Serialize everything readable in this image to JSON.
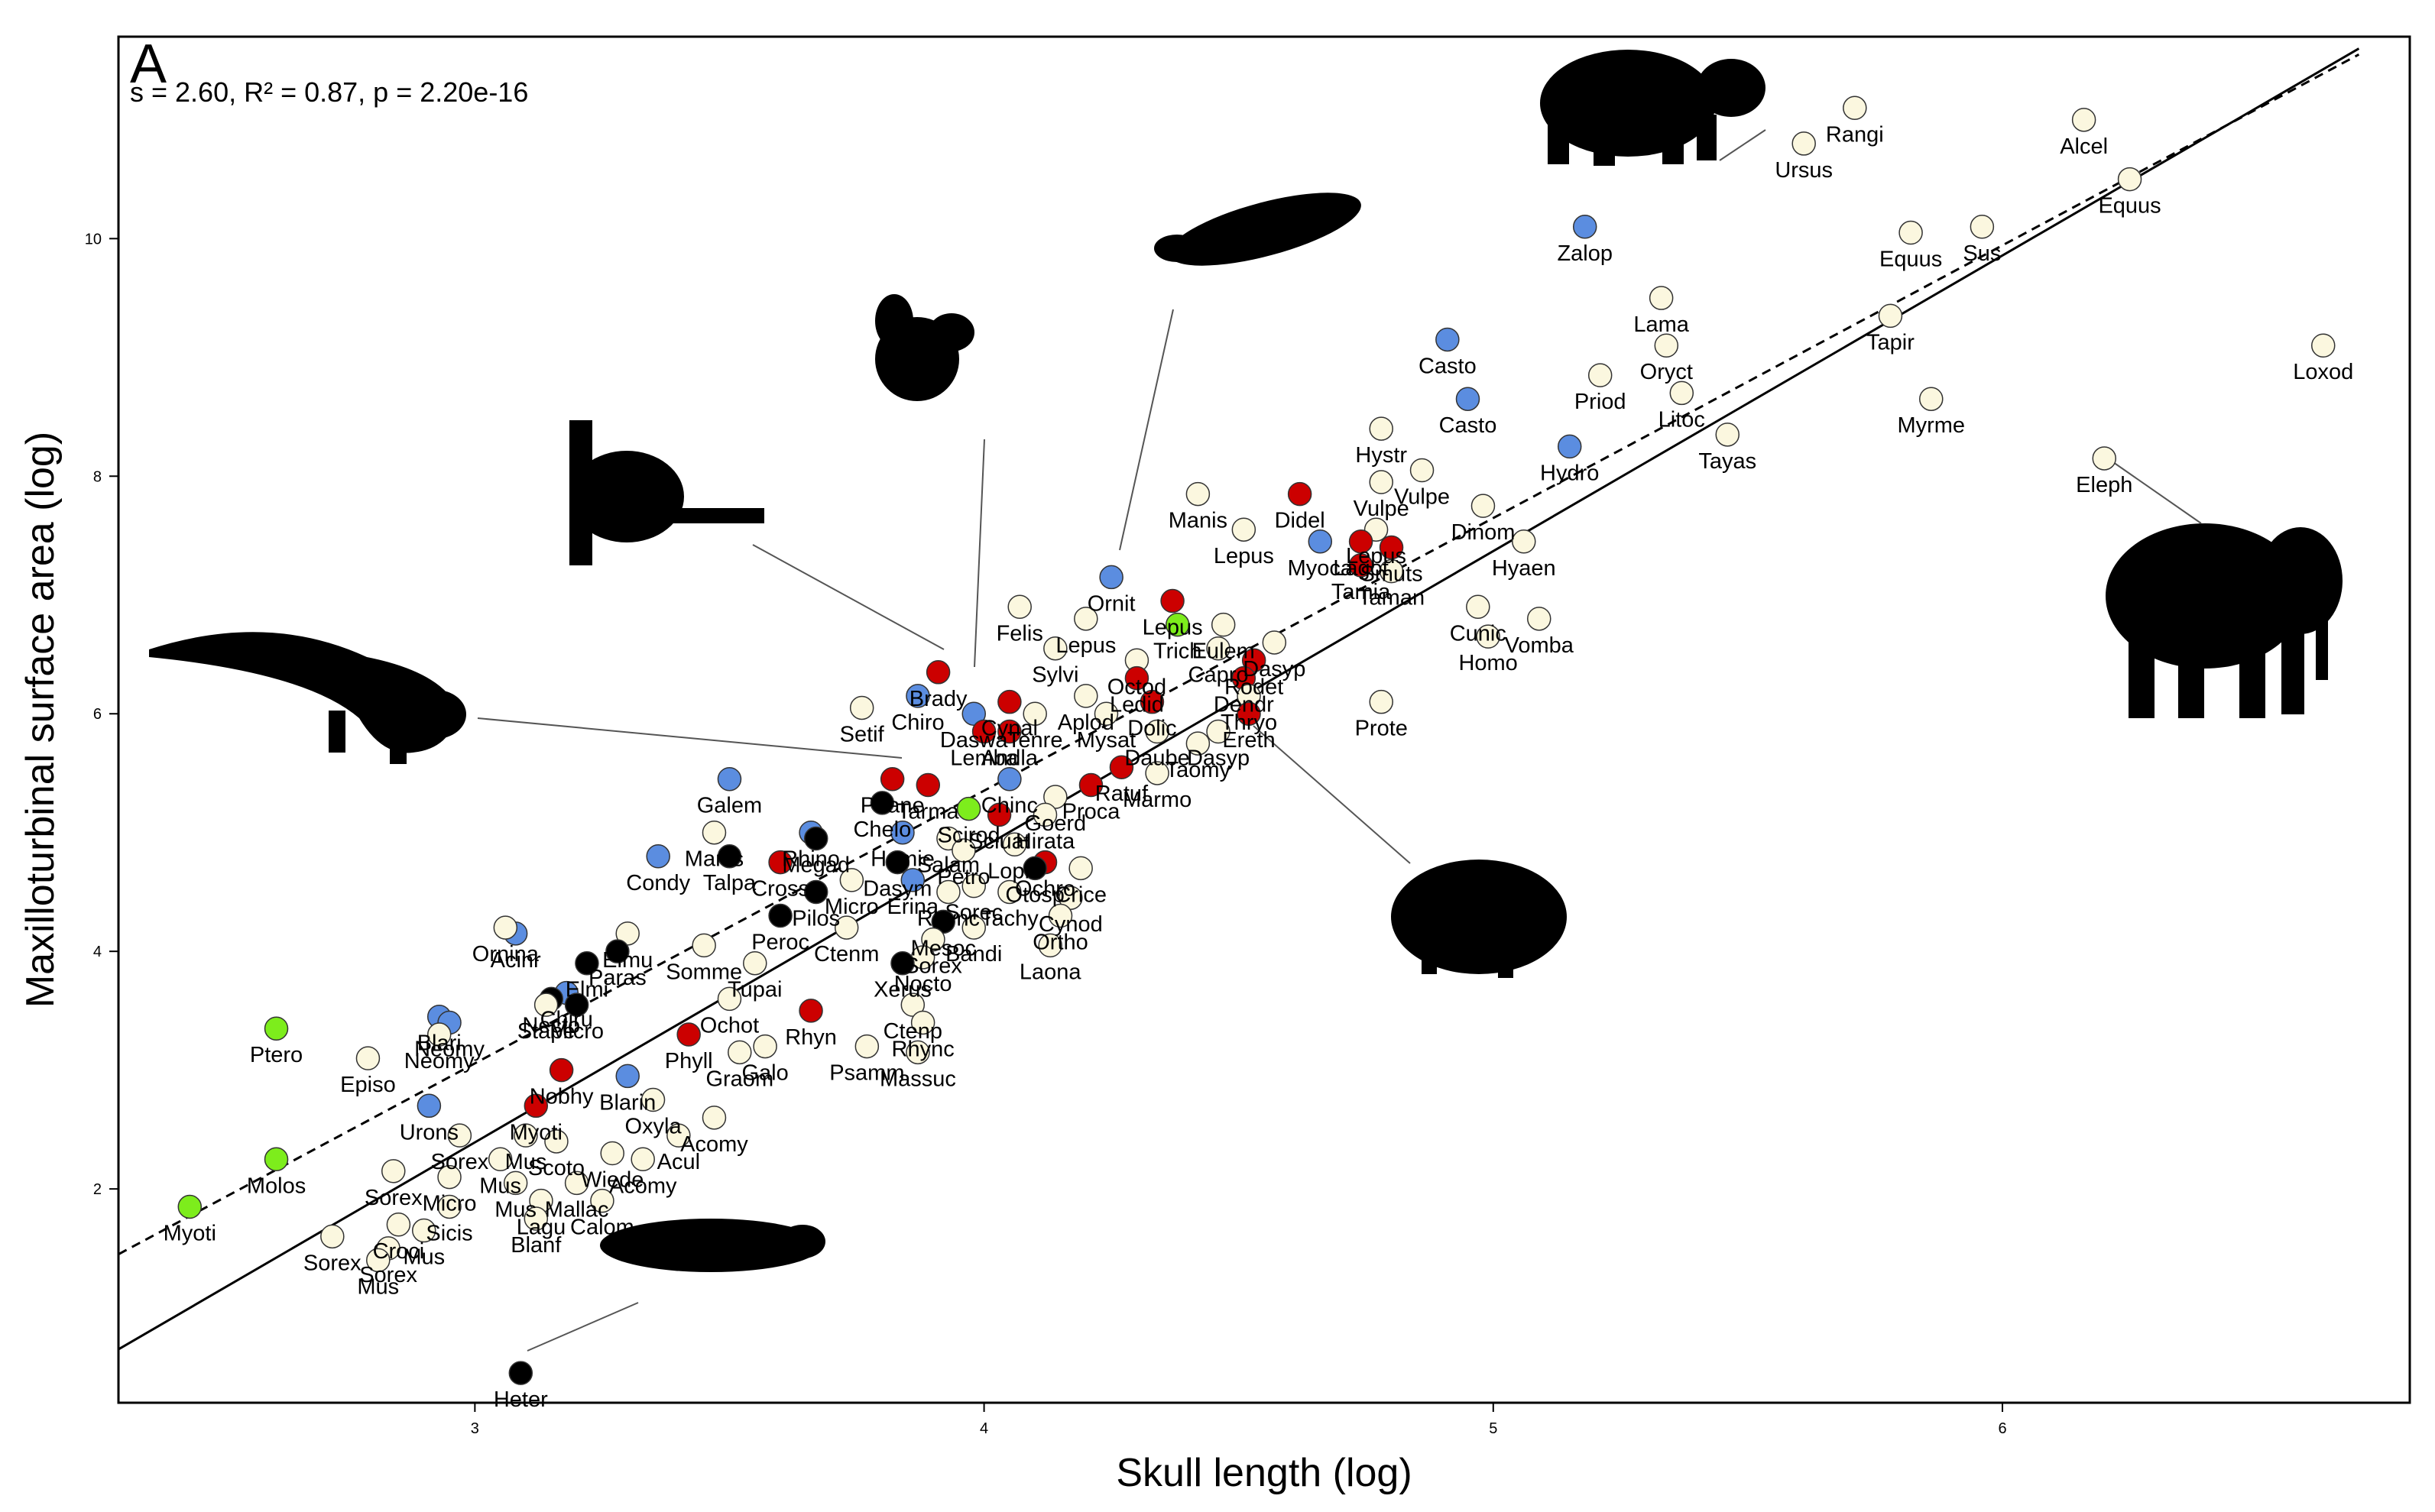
{
  "chart_data": {
    "type": "scatter",
    "panel_label": "A",
    "stats": "s = 2.60, R² = 0.87, p = 2.20e-16",
    "xlabel": "Skull length (log)",
    "ylabel": "Maxilloturbinal surface area (log)",
    "xlim": [
      2.3,
      6.8
    ],
    "ylim": [
      0.2,
      11.7
    ],
    "xticks": [
      3,
      4,
      5,
      6
    ],
    "yticks": [
      2,
      4,
      6,
      8,
      10
    ],
    "group_colors": {
      "cream": "#fbf7df",
      "blue": "#5b8de0",
      "red": "#cc0000",
      "black": "#000000",
      "green": "#7ded1c"
    },
    "fit_lines": [
      {
        "name": "solid",
        "x": [
          2.3,
          6.7
        ],
        "y": [
          0.65,
          11.6
        ]
      },
      {
        "name": "dashed",
        "x": [
          2.3,
          6.7
        ],
        "y": [
          1.45,
          11.55
        ]
      }
    ],
    "labeled_points": [
      {
        "x": 5.71,
        "y": 11.1,
        "group": "cream",
        "label": "Rangi"
      },
      {
        "x": 5.61,
        "y": 10.8,
        "group": "cream",
        "label": "Ursus"
      },
      {
        "x": 6.16,
        "y": 11.0,
        "group": "cream",
        "label": "Alcel"
      },
      {
        "x": 6.25,
        "y": 10.5,
        "group": "cream",
        "label": "Equus"
      },
      {
        "x": 5.18,
        "y": 10.1,
        "group": "blue",
        "label": "Zalop"
      },
      {
        "x": 5.82,
        "y": 10.05,
        "group": "cream",
        "label": "Equus"
      },
      {
        "x": 5.96,
        "y": 10.1,
        "group": "cream",
        "label": "Sus"
      },
      {
        "x": 5.33,
        "y": 9.5,
        "group": "cream",
        "label": "Lama"
      },
      {
        "x": 5.78,
        "y": 9.35,
        "group": "cream",
        "label": "Tapir"
      },
      {
        "x": 4.91,
        "y": 9.15,
        "group": "blue",
        "label": "Casto"
      },
      {
        "x": 5.34,
        "y": 9.1,
        "group": "cream",
        "label": "Oryct"
      },
      {
        "x": 6.63,
        "y": 9.1,
        "group": "cream",
        "label": "Loxod"
      },
      {
        "x": 5.21,
        "y": 8.85,
        "group": "cream",
        "label": "Priod"
      },
      {
        "x": 4.95,
        "y": 8.65,
        "group": "blue",
        "label": "Casto"
      },
      {
        "x": 5.37,
        "y": 8.7,
        "group": "cream",
        "label": "Litoc"
      },
      {
        "x": 5.86,
        "y": 8.65,
        "group": "cream",
        "label": "Myrme"
      },
      {
        "x": 5.46,
        "y": 8.35,
        "group": "cream",
        "label": "Tayas"
      },
      {
        "x": 5.15,
        "y": 8.25,
        "group": "blue",
        "label": "Hydro"
      },
      {
        "x": 6.2,
        "y": 8.15,
        "group": "cream",
        "label": "Eleph"
      },
      {
        "x": 4.78,
        "y": 8.4,
        "group": "cream",
        "label": "Hystr"
      },
      {
        "x": 4.86,
        "y": 8.05,
        "group": "cream",
        "label": "Vulpe"
      },
      {
        "x": 4.78,
        "y": 7.95,
        "group": "cream",
        "label": "Vulpe"
      },
      {
        "x": 4.62,
        "y": 7.85,
        "group": "red",
        "label": "Didel"
      },
      {
        "x": 4.42,
        "y": 7.85,
        "group": "cream",
        "label": "Manis"
      },
      {
        "x": 4.98,
        "y": 7.75,
        "group": "cream",
        "label": "Dinom"
      },
      {
        "x": 4.77,
        "y": 7.55,
        "group": "cream",
        "label": "Lepus"
      },
      {
        "x": 4.51,
        "y": 7.55,
        "group": "cream",
        "label": "Lepus"
      },
      {
        "x": 4.66,
        "y": 7.45,
        "group": "blue",
        "label": "Myoca"
      },
      {
        "x": 4.74,
        "y": 7.45,
        "group": "red",
        "label": "Lagot"
      },
      {
        "x": 4.8,
        "y": 7.4,
        "group": "red",
        "label": "Smuts"
      },
      {
        "x": 5.06,
        "y": 7.45,
        "group": "cream",
        "label": "Hyaen"
      },
      {
        "x": 4.74,
        "y": 7.25,
        "group": "red",
        "label": "Tamia"
      },
      {
        "x": 4.8,
        "y": 7.2,
        "group": "cream",
        "label": "Taman"
      },
      {
        "x": 4.25,
        "y": 7.15,
        "group": "blue",
        "label": "Ornit"
      },
      {
        "x": 4.37,
        "y": 6.95,
        "group": "red",
        "label": "Lepus"
      },
      {
        "x": 4.38,
        "y": 6.75,
        "group": "green",
        "label": "Trich"
      },
      {
        "x": 4.47,
        "y": 6.75,
        "group": "cream",
        "label": "Eulem"
      },
      {
        "x": 4.97,
        "y": 6.9,
        "group": "cream",
        "label": "Cunic"
      },
      {
        "x": 5.09,
        "y": 6.8,
        "group": "cream",
        "label": "Vomba"
      },
      {
        "x": 4.99,
        "y": 6.65,
        "group": "cream",
        "label": "Homo"
      },
      {
        "x": 4.07,
        "y": 6.9,
        "group": "cream",
        "label": "Felis"
      },
      {
        "x": 4.2,
        "y": 6.8,
        "group": "cream",
        "label": "Lepus"
      },
      {
        "x": 4.57,
        "y": 6.6,
        "group": "cream",
        "label": "Dasyp"
      },
      {
        "x": 4.46,
        "y": 6.55,
        "group": "cream",
        "label": "Capro"
      },
      {
        "x": 4.14,
        "y": 6.55,
        "group": "cream",
        "label": "Sylvi"
      },
      {
        "x": 4.3,
        "y": 6.45,
        "group": "cream",
        "label": "Octod"
      },
      {
        "x": 4.53,
        "y": 6.45,
        "group": "red",
        "label": "Rodet"
      },
      {
        "x": 4.51,
        "y": 6.3,
        "group": "red",
        "label": "Dendr"
      },
      {
        "x": 4.52,
        "y": 6.15,
        "group": "cream",
        "label": "Thryo"
      },
      {
        "x": 4.3,
        "y": 6.3,
        "group": "red",
        "label": "Ledid"
      },
      {
        "x": 4.2,
        "y": 6.15,
        "group": "cream",
        "label": "Aplod"
      },
      {
        "x": 4.33,
        "y": 6.1,
        "group": "red",
        "label": "Dolic"
      },
      {
        "x": 4.24,
        "y": 6.0,
        "group": "cream",
        "label": "Mysat"
      },
      {
        "x": 4.52,
        "y": 6.0,
        "group": "red",
        "label": "Ereth"
      },
      {
        "x": 3.91,
        "y": 6.35,
        "group": "red",
        "label": "Brady"
      },
      {
        "x": 3.87,
        "y": 6.15,
        "group": "blue",
        "label": "Chiro"
      },
      {
        "x": 3.76,
        "y": 6.05,
        "group": "cream",
        "label": "Setif"
      },
      {
        "x": 4.78,
        "y": 6.1,
        "group": "cream",
        "label": "Prote"
      },
      {
        "x": 4.1,
        "y": 6.0,
        "group": "cream",
        "label": "Tenre"
      },
      {
        "x": 4.05,
        "y": 6.1,
        "group": "red",
        "label": "Cynal"
      },
      {
        "x": 3.98,
        "y": 6.0,
        "group": "blue",
        "label": "Daswa"
      },
      {
        "x": 4.0,
        "y": 5.85,
        "group": "red",
        "label": "Lemba"
      },
      {
        "x": 4.05,
        "y": 5.85,
        "group": "red",
        "label": "Andla"
      },
      {
        "x": 4.34,
        "y": 5.85,
        "group": "cream",
        "label": "Daube"
      },
      {
        "x": 4.46,
        "y": 5.85,
        "group": "cream",
        "label": "Dasyp"
      },
      {
        "x": 4.42,
        "y": 5.75,
        "group": "cream",
        "label": "Taomy"
      },
      {
        "x": 4.34,
        "y": 5.5,
        "group": "cream",
        "label": "Marmo"
      },
      {
        "x": 4.27,
        "y": 5.55,
        "group": "red",
        "label": "Ratuf"
      },
      {
        "x": 4.21,
        "y": 5.4,
        "group": "red",
        "label": "Proca"
      },
      {
        "x": 4.05,
        "y": 5.45,
        "group": "blue",
        "label": "Chinc"
      },
      {
        "x": 4.14,
        "y": 5.3,
        "group": "cream",
        "label": "Goerd"
      },
      {
        "x": 4.12,
        "y": 5.15,
        "group": "cream",
        "label": "Hirata"
      },
      {
        "x": 3.89,
        "y": 5.4,
        "group": "red",
        "label": "Tarma"
      },
      {
        "x": 3.82,
        "y": 5.45,
        "group": "red",
        "label": "Phane"
      },
      {
        "x": 3.8,
        "y": 5.25,
        "group": "black",
        "label": "Chelo"
      },
      {
        "x": 3.97,
        "y": 5.2,
        "group": "green",
        "label": "Scirod"
      },
      {
        "x": 4.03,
        "y": 5.15,
        "group": "red",
        "label": "Sciuat"
      },
      {
        "x": 3.5,
        "y": 5.45,
        "group": "blue",
        "label": "Galem"
      },
      {
        "x": 3.47,
        "y": 5.0,
        "group": "cream",
        "label": "Manis"
      },
      {
        "x": 3.66,
        "y": 5.0,
        "group": "blue",
        "label": "Rhino"
      },
      {
        "x": 3.84,
        "y": 5.0,
        "group": "blue",
        "label": "Hemie"
      },
      {
        "x": 3.93,
        "y": 4.95,
        "group": "cream",
        "label": "Salam"
      },
      {
        "x": 4.06,
        "y": 4.9,
        "group": "cream",
        "label": "Lophi"
      },
      {
        "x": 3.96,
        "y": 4.85,
        "group": "cream",
        "label": "Petro"
      },
      {
        "x": 4.12,
        "y": 4.75,
        "group": "red",
        "label": "Ochro"
      },
      {
        "x": 3.36,
        "y": 4.8,
        "group": "blue",
        "label": "Condy"
      },
      {
        "x": 3.5,
        "y": 4.8,
        "group": "black",
        "label": "Talpa"
      },
      {
        "x": 3.6,
        "y": 4.75,
        "group": "red",
        "label": "Cross"
      },
      {
        "x": 3.67,
        "y": 4.95,
        "group": "black",
        "label": "Megad"
      },
      {
        "x": 3.83,
        "y": 4.75,
        "group": "black",
        "label": "Dasym"
      },
      {
        "x": 4.1,
        "y": 4.7,
        "group": "black",
        "label": "Otosp"
      },
      {
        "x": 4.19,
        "y": 4.7,
        "group": "cream",
        "label": "Crice"
      },
      {
        "x": 4.17,
        "y": 4.45,
        "group": "cream",
        "label": "Cynod"
      },
      {
        "x": 4.05,
        "y": 4.5,
        "group": "cream",
        "label": "Tachy"
      },
      {
        "x": 3.74,
        "y": 4.6,
        "group": "cream",
        "label": "Micro"
      },
      {
        "x": 3.86,
        "y": 4.6,
        "group": "blue",
        "label": "Erina"
      },
      {
        "x": 3.67,
        "y": 4.5,
        "group": "black",
        "label": "Pilos"
      },
      {
        "x": 3.93,
        "y": 4.5,
        "group": "cream",
        "label": "Rhync"
      },
      {
        "x": 3.98,
        "y": 4.55,
        "group": "cream",
        "label": "Sorec"
      },
      {
        "x": 3.6,
        "y": 4.3,
        "group": "black",
        "label": "Peroc"
      },
      {
        "x": 3.73,
        "y": 4.2,
        "group": "cream",
        "label": "Ctenm"
      },
      {
        "x": 3.92,
        "y": 4.25,
        "group": "black",
        "label": "Mesoc"
      },
      {
        "x": 3.98,
        "y": 4.2,
        "group": "cream",
        "label": "Bandi"
      },
      {
        "x": 3.9,
        "y": 4.1,
        "group": "cream",
        "label": "Sorex"
      },
      {
        "x": 4.15,
        "y": 4.3,
        "group": "cream",
        "label": "Ortho"
      },
      {
        "x": 4.13,
        "y": 4.05,
        "group": "cream",
        "label": "Laona"
      },
      {
        "x": 3.3,
        "y": 4.15,
        "group": "cream",
        "label": "Eimu"
      },
      {
        "x": 3.45,
        "y": 4.05,
        "group": "cream",
        "label": "Somme"
      },
      {
        "x": 3.08,
        "y": 4.15,
        "group": "blue",
        "label": "Acinr"
      },
      {
        "x": 3.06,
        "y": 4.2,
        "group": "cream",
        "label": "Ornina"
      },
      {
        "x": 3.22,
        "y": 3.9,
        "group": "black",
        "label": "Elmi"
      },
      {
        "x": 3.28,
        "y": 4.0,
        "group": "black",
        "label": "Paras"
      },
      {
        "x": 3.88,
        "y": 3.95,
        "group": "cream",
        "label": "Nocto"
      },
      {
        "x": 3.84,
        "y": 3.9,
        "group": "black",
        "label": "Xerus"
      },
      {
        "x": 3.55,
        "y": 3.9,
        "group": "cream",
        "label": "Tupai"
      },
      {
        "x": 3.18,
        "y": 3.65,
        "group": "blue",
        "label": "Chiru"
      },
      {
        "x": 3.2,
        "y": 3.55,
        "group": "black",
        "label": "Micro"
      },
      {
        "x": 3.15,
        "y": 3.6,
        "group": "black",
        "label": "Necto"
      },
      {
        "x": 3.14,
        "y": 3.55,
        "group": "cream",
        "label": "Stape"
      },
      {
        "x": 2.93,
        "y": 3.45,
        "group": "blue",
        "label": "Blari"
      },
      {
        "x": 2.95,
        "y": 3.4,
        "group": "blue",
        "label": "Neomy"
      },
      {
        "x": 2.93,
        "y": 3.3,
        "group": "cream",
        "label": "Neomy"
      },
      {
        "x": 3.5,
        "y": 3.6,
        "group": "cream",
        "label": "Ochot"
      },
      {
        "x": 3.66,
        "y": 3.5,
        "group": "red",
        "label": "Rhyn"
      },
      {
        "x": 3.86,
        "y": 3.55,
        "group": "cream",
        "label": "Ctenp"
      },
      {
        "x": 3.88,
        "y": 3.4,
        "group": "cream",
        "label": "Rhync"
      },
      {
        "x": 3.42,
        "y": 3.3,
        "group": "red",
        "label": "Phyll"
      },
      {
        "x": 3.57,
        "y": 3.2,
        "group": "cream",
        "label": "Galo"
      },
      {
        "x": 3.52,
        "y": 3.15,
        "group": "cream",
        "label": "Graom"
      },
      {
        "x": 3.77,
        "y": 3.2,
        "group": "cream",
        "label": "Psamm"
      },
      {
        "x": 3.87,
        "y": 3.15,
        "group": "cream",
        "label": "Massuc"
      },
      {
        "x": 2.61,
        "y": 3.35,
        "group": "green",
        "label": "Ptero"
      },
      {
        "x": 2.79,
        "y": 3.1,
        "group": "cream",
        "label": "Episo"
      },
      {
        "x": 3.17,
        "y": 3.0,
        "group": "red",
        "label": "Nobhy"
      },
      {
        "x": 3.3,
        "y": 2.95,
        "group": "blue",
        "label": "Blarin"
      },
      {
        "x": 2.91,
        "y": 2.7,
        "group": "blue",
        "label": "Urons"
      },
      {
        "x": 3.12,
        "y": 2.7,
        "group": "red",
        "label": "Myoti"
      },
      {
        "x": 3.35,
        "y": 2.75,
        "group": "cream",
        "label": "Oxyla"
      },
      {
        "x": 3.47,
        "y": 2.6,
        "group": "cream",
        "label": "Acomy"
      },
      {
        "x": 3.4,
        "y": 2.45,
        "group": "cream",
        "label": "Acul"
      },
      {
        "x": 2.97,
        "y": 2.45,
        "group": "cream",
        "label": "Sorex"
      },
      {
        "x": 3.1,
        "y": 2.45,
        "group": "cream",
        "label": "Mus"
      },
      {
        "x": 3.16,
        "y": 2.4,
        "group": "cream",
        "label": "Scoto"
      },
      {
        "x": 3.27,
        "y": 2.3,
        "group": "cream",
        "label": "Wiede"
      },
      {
        "x": 3.33,
        "y": 2.25,
        "group": "cream",
        "label": "Acomy"
      },
      {
        "x": 3.05,
        "y": 2.25,
        "group": "cream",
        "label": "Mus"
      },
      {
        "x": 2.61,
        "y": 2.25,
        "group": "green",
        "label": "Molos"
      },
      {
        "x": 2.95,
        "y": 2.1,
        "group": "cream",
        "label": "Micro"
      },
      {
        "x": 3.08,
        "y": 2.05,
        "group": "cream",
        "label": "Mus"
      },
      {
        "x": 3.2,
        "y": 2.05,
        "group": "cream",
        "label": "Mallac"
      },
      {
        "x": 3.25,
        "y": 1.9,
        "group": "cream",
        "label": "Calom"
      },
      {
        "x": 3.13,
        "y": 1.9,
        "group": "cream",
        "label": "Lagu"
      },
      {
        "x": 2.84,
        "y": 2.15,
        "group": "cream",
        "label": "Sorex"
      },
      {
        "x": 2.95,
        "y": 1.85,
        "group": "cream",
        "label": "Sicis"
      },
      {
        "x": 3.12,
        "y": 1.75,
        "group": "cream",
        "label": "Blanf"
      },
      {
        "x": 2.44,
        "y": 1.85,
        "group": "green",
        "label": "Myoti"
      },
      {
        "x": 2.85,
        "y": 1.7,
        "group": "cream",
        "label": "Croci"
      },
      {
        "x": 2.9,
        "y": 1.65,
        "group": "cream",
        "label": "Mus"
      },
      {
        "x": 2.72,
        "y": 1.6,
        "group": "cream",
        "label": "Sorex"
      },
      {
        "x": 2.83,
        "y": 1.5,
        "group": "cream",
        "label": "Sorex"
      },
      {
        "x": 2.81,
        "y": 1.4,
        "group": "cream",
        "label": "Mus"
      },
      {
        "x": 3.09,
        "y": 0.45,
        "group": "black",
        "label": "Heter"
      }
    ]
  }
}
